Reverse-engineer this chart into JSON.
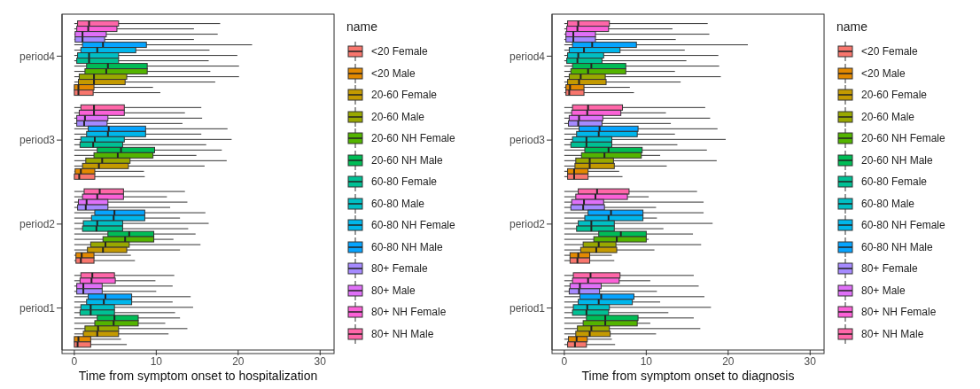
{
  "chart_data": [
    {
      "type": "box",
      "orientation": "horizontal",
      "xlabel": "Time from symptom onset to hospitalization",
      "legend_title": "name",
      "legend": "right",
      "grid": true,
      "xlim": [
        -1.5,
        31.7
      ],
      "xticks": [
        0,
        10,
        20,
        30
      ],
      "categories": [
        "period4",
        "period3",
        "period2",
        "period1"
      ],
      "series": [
        {
          "name": "<20 Female",
          "color": "#f8766d",
          "boxes": [
            {
              "low": 0,
              "q1": 0,
              "median": 0.5,
              "q3": 2.3,
              "high": 10.5
            },
            {
              "low": 0,
              "q1": 0,
              "median": 0.6,
              "q3": 2.5,
              "high": 8.6
            },
            {
              "low": 0,
              "q1": 0.2,
              "median": 0.8,
              "q3": 2.4,
              "high": 7.4
            },
            {
              "low": 0,
              "q1": 0,
              "median": 0.4,
              "q3": 2,
              "high": 6.4
            }
          ]
        },
        {
          "name": "<20 Male",
          "color": "#e38900",
          "boxes": [
            {
              "low": 0,
              "q1": 0,
              "median": 0.5,
              "q3": 2.4,
              "high": 9.6
            },
            {
              "low": 0,
              "q1": 0.1,
              "median": 0.8,
              "q3": 2.5,
              "high": 8.5
            },
            {
              "low": 0,
              "q1": 0.2,
              "median": 0.9,
              "q3": 2.4,
              "high": 6.9
            },
            {
              "low": 0,
              "q1": 0,
              "median": 0.5,
              "q3": 2,
              "high": 5.7
            }
          ]
        },
        {
          "name": "20-60 Female",
          "color": "#c49a00",
          "boxes": [
            {
              "low": 0,
              "q1": 0.5,
              "median": 2.4,
              "q3": 6.2,
              "high": 17.2
            },
            {
              "low": 0,
              "q1": 1,
              "median": 3,
              "q3": 6.6,
              "high": 15.9
            },
            {
              "low": 0,
              "q1": 1.6,
              "median": 3.5,
              "q3": 6.4,
              "high": 12.9
            },
            {
              "low": 0,
              "q1": 1.1,
              "median": 2.8,
              "q3": 5.4,
              "high": 11.5
            }
          ]
        },
        {
          "name": "20-60 Male",
          "color": "#99a800",
          "boxes": [
            {
              "low": 0,
              "q1": 0.6,
              "median": 2.4,
              "q3": 6.4,
              "high": 20.1
            },
            {
              "low": 0,
              "q1": 1.4,
              "median": 3.4,
              "q3": 6.8,
              "high": 18.6
            },
            {
              "low": 0,
              "q1": 2,
              "median": 3.8,
              "q3": 6.7,
              "high": 15.4
            },
            {
              "low": 0,
              "q1": 1.3,
              "median": 2.9,
              "q3": 5.4,
              "high": 13.8
            }
          ]
        },
        {
          "name": "20-60 NH Female",
          "color": "#53b400",
          "boxes": [
            {
              "low": 0,
              "q1": 1.3,
              "median": 3.9,
              "q3": 8.9,
              "high": 16.6
            },
            {
              "low": 0,
              "q1": 2.4,
              "median": 5.3,
              "q3": 9.6,
              "high": 14.9
            },
            {
              "low": 0,
              "q1": 3.5,
              "median": 6.2,
              "q3": 9.7,
              "high": 12.1
            },
            {
              "low": 0,
              "q1": 2.5,
              "median": 4.8,
              "q3": 7.8,
              "high": 11.1
            }
          ]
        },
        {
          "name": "20-60 NH Male",
          "color": "#00bc56",
          "boxes": [
            {
              "low": 0,
              "q1": 1.5,
              "median": 4.1,
              "q3": 8.9,
              "high": 20.1
            },
            {
              "low": 0,
              "q1": 2.8,
              "median": 5.7,
              "q3": 9.8,
              "high": 18
            },
            {
              "low": 0,
              "q1": 4.1,
              "median": 6.7,
              "q3": 9.7,
              "high": 14.8
            },
            {
              "low": 0,
              "q1": 2.8,
              "median": 4.9,
              "q3": 7.8,
              "high": 12.9
            }
          ]
        },
        {
          "name": "60-80 Female",
          "color": "#00c094",
          "boxes": [
            {
              "low": 0,
              "q1": 0.3,
              "median": 1.8,
              "q3": 5.4,
              "high": 16.4
            },
            {
              "low": 0,
              "q1": 0.7,
              "median": 2.3,
              "q3": 5.9,
              "high": 16.1
            },
            {
              "low": 0,
              "q1": 1,
              "median": 2.7,
              "q3": 5.9,
              "high": 13.9
            },
            {
              "low": 0,
              "q1": 0.7,
              "median": 2,
              "q3": 4.9,
              "high": 12.3
            }
          ]
        },
        {
          "name": "60-80 Male",
          "color": "#00bfc4",
          "boxes": [
            {
              "low": 0,
              "q1": 0.4,
              "median": 1.8,
              "q3": 5.4,
              "high": 19.9
            },
            {
              "low": 0,
              "q1": 0.8,
              "median": 2.5,
              "q3": 6.1,
              "high": 19.2
            },
            {
              "low": 0,
              "q1": 1.1,
              "median": 2.8,
              "q3": 5.9,
              "high": 16.4
            },
            {
              "low": 0,
              "q1": 0.8,
              "median": 2,
              "q3": 4.9,
              "high": 14.5
            }
          ]
        },
        {
          "name": "60-80 NH Female",
          "color": "#00b6eb",
          "boxes": [
            {
              "low": 0,
              "q1": 0.8,
              "median": 2.8,
              "q3": 7.5,
              "high": 16.5
            },
            {
              "low": 0,
              "q1": 1.5,
              "median": 4.1,
              "q3": 8.7,
              "high": 15.5
            },
            {
              "low": 0,
              "q1": 2.1,
              "median": 4.8,
              "q3": 8.6,
              "high": 12.9
            },
            {
              "low": 0,
              "q1": 1.5,
              "median": 3.6,
              "q3": 7,
              "high": 12
            }
          ]
        },
        {
          "name": "60-80 NH Male",
          "color": "#06a4ff",
          "boxes": [
            {
              "low": 0,
              "q1": 1,
              "median": 3.5,
              "q3": 8.8,
              "high": 21.7
            },
            {
              "low": 0,
              "q1": 1.7,
              "median": 4.2,
              "q3": 8.7,
              "high": 18.7
            },
            {
              "low": 0,
              "q1": 2.5,
              "median": 4.9,
              "q3": 8.6,
              "high": 16
            },
            {
              "low": 0,
              "q1": 1.7,
              "median": 3.8,
              "q3": 7,
              "high": 14.2
            }
          ]
        },
        {
          "name": "80+ Female",
          "color": "#a58aff",
          "boxes": [
            {
              "low": 0,
              "q1": 0.1,
              "median": 1,
              "q3": 3.7,
              "high": 14.6
            },
            {
              "low": 0,
              "q1": 0.3,
              "median": 1.2,
              "q3": 4,
              "high": 13.2
            },
            {
              "low": 0,
              "q1": 0.4,
              "median": 1.4,
              "q3": 4.1,
              "high": 11.7
            },
            {
              "low": 0,
              "q1": 0.3,
              "median": 1.1,
              "q3": 3.4,
              "high": 10
            }
          ]
        },
        {
          "name": "80+ Male",
          "color": "#df70f8",
          "boxes": [
            {
              "low": 0,
              "q1": 0.1,
              "median": 1,
              "q3": 3.9,
              "high": 17.5
            },
            {
              "low": 0,
              "q1": 0.3,
              "median": 1.3,
              "q3": 4.1,
              "high": 15.6
            },
            {
              "low": 0,
              "q1": 0.5,
              "median": 1.5,
              "q3": 4.1,
              "high": 13.8
            },
            {
              "low": 0,
              "q1": 0.3,
              "median": 1.1,
              "q3": 3.4,
              "high": 12
            }
          ]
        },
        {
          "name": "80+ NH Female",
          "color": "#fb61d7",
          "boxes": [
            {
              "low": 0,
              "q1": 0.3,
              "median": 1.7,
              "q3": 5.2,
              "high": 14.6
            },
            {
              "low": 0,
              "q1": 0.6,
              "median": 2.4,
              "q3": 6.1,
              "high": 13.5
            },
            {
              "low": 0,
              "q1": 1,
              "median": 2.8,
              "q3": 6,
              "high": 11.3
            },
            {
              "low": 0,
              "q1": 0.7,
              "median": 2.1,
              "q3": 5,
              "high": 9.9
            }
          ]
        },
        {
          "name": "80+ NH Male",
          "color": "#ff66a8",
          "boxes": [
            {
              "low": 0,
              "q1": 0.4,
              "median": 1.8,
              "q3": 5.4,
              "high": 17.8
            },
            {
              "low": 0,
              "q1": 0.8,
              "median": 2.4,
              "q3": 6.1,
              "high": 15.5
            },
            {
              "low": 0,
              "q1": 1.2,
              "median": 3.1,
              "q3": 6,
              "high": 13.5
            },
            {
              "low": 0,
              "q1": 0.8,
              "median": 2.2,
              "q3": 4.9,
              "high": 12.2
            }
          ]
        }
      ]
    },
    {
      "type": "box",
      "orientation": "horizontal",
      "xlabel": "Time from symptom onset to diagnosis",
      "legend_title": "name",
      "legend": "right",
      "grid": true,
      "xlim": [
        -1.5,
        31.7
      ],
      "xticks": [
        0,
        10,
        20,
        30
      ],
      "categories": [
        "period4",
        "period3",
        "period2",
        "period1"
      ],
      "series": [
        {
          "name": "<20 Female",
          "color": "#f8766d",
          "boxes": [
            {
              "low": 0,
              "q1": 0.2,
              "median": 0.6,
              "q3": 2.4,
              "high": 8.5
            },
            {
              "low": 0,
              "q1": 0.4,
              "median": 1.2,
              "q3": 2.9,
              "high": 7.1
            },
            {
              "low": 0,
              "q1": 0.7,
              "median": 1.6,
              "q3": 3.1,
              "high": 6.1
            },
            {
              "low": 0,
              "q1": 0.4,
              "median": 1.3,
              "q3": 2.7,
              "high": 6.2
            }
          ]
        },
        {
          "name": "<20 Male",
          "color": "#e38900",
          "boxes": [
            {
              "low": 0,
              "q1": 0.2,
              "median": 0.7,
              "q3": 2.4,
              "high": 8
            },
            {
              "low": 0,
              "q1": 0.4,
              "median": 1.2,
              "q3": 2.9,
              "high": 6.7
            },
            {
              "low": 0,
              "q1": 0.7,
              "median": 1.7,
              "q3": 3.1,
              "high": 5.8
            },
            {
              "low": 0,
              "q1": 0.5,
              "median": 1.5,
              "q3": 2.8,
              "high": 5.8
            }
          ]
        },
        {
          "name": "20-60 Female",
          "color": "#c49a00",
          "boxes": [
            {
              "low": 0,
              "q1": 0.4,
              "median": 1.8,
              "q3": 5.1,
              "high": 14.2
            },
            {
              "low": 0,
              "q1": 1.3,
              "median": 3.1,
              "q3": 6.1,
              "high": 12.5
            },
            {
              "low": 0,
              "q1": 2,
              "median": 3.9,
              "q3": 6.4,
              "high": 11
            },
            {
              "low": 0,
              "q1": 1.4,
              "median": 3.1,
              "q3": 5.6,
              "high": 11.2
            }
          ]
        },
        {
          "name": "20-60 Male",
          "color": "#99a800",
          "boxes": [
            {
              "low": 0,
              "q1": 0.6,
              "median": 2,
              "q3": 5,
              "high": 19.1
            },
            {
              "low": 0,
              "q1": 1.4,
              "median": 3.1,
              "q3": 6,
              "high": 18.6
            },
            {
              "low": 0,
              "q1": 2.3,
              "median": 4.2,
              "q3": 6.3,
              "high": 16.7
            },
            {
              "low": 0,
              "q1": 1.6,
              "median": 3.3,
              "q3": 5.5,
              "high": 16.6
            }
          ]
        },
        {
          "name": "20-60 NH Female",
          "color": "#53b400",
          "boxes": [
            {
              "low": 0,
              "q1": 0.8,
              "median": 2.9,
              "q3": 7.5,
              "high": 13.5
            },
            {
              "low": 0,
              "q1": 2.1,
              "median": 4.9,
              "q3": 9.4,
              "high": 11.7
            },
            {
              "low": 0,
              "q1": 3.6,
              "median": 6.4,
              "q3": 10,
              "high": 10.3
            },
            {
              "low": 0,
              "q1": 2.3,
              "median": 5,
              "q3": 8.9,
              "high": 10.5
            }
          ]
        },
        {
          "name": "20-60 NH Male",
          "color": "#00bc56",
          "boxes": [
            {
              "low": 0,
              "q1": 1,
              "median": 3.3,
              "q3": 7.5,
              "high": 18.9
            },
            {
              "low": 0,
              "q1": 2.5,
              "median": 5.4,
              "q3": 9.5,
              "high": 17.4
            },
            {
              "low": 0,
              "q1": 4.2,
              "median": 6.9,
              "q3": 10,
              "high": 15.7
            },
            {
              "low": 0,
              "q1": 2.7,
              "median": 5,
              "q3": 9,
              "high": 15.8
            }
          ]
        },
        {
          "name": "60-80 Female",
          "color": "#00c094",
          "boxes": [
            {
              "low": 0,
              "q1": 0.3,
              "median": 1.6,
              "q3": 4.6,
              "high": 14.9
            },
            {
              "low": 0,
              "q1": 0.8,
              "median": 2.7,
              "q3": 5.8,
              "high": 13.8
            },
            {
              "low": 0,
              "q1": 1.5,
              "median": 3.3,
              "q3": 6.1,
              "high": 12.1
            },
            {
              "low": 0,
              "q1": 1,
              "median": 2.7,
              "q3": 5.4,
              "high": 12.7
            }
          ]
        },
        {
          "name": "60-80 Male",
          "color": "#00bfc4",
          "boxes": [
            {
              "low": 0,
              "q1": 0.4,
              "median": 1.7,
              "q3": 4.8,
              "high": 18.8
            },
            {
              "low": 0,
              "q1": 1,
              "median": 2.7,
              "q3": 5.8,
              "high": 19.7
            },
            {
              "low": 0,
              "q1": 1.7,
              "median": 3.3,
              "q3": 6.1,
              "high": 18.1
            },
            {
              "low": 0,
              "q1": 1.1,
              "median": 2.8,
              "q3": 5.5,
              "high": 17.9
            }
          ]
        },
        {
          "name": "60-80 NH Female",
          "color": "#00b6eb",
          "boxes": [
            {
              "low": 0,
              "q1": 0.6,
              "median": 2.4,
              "q3": 6.8,
              "high": 14.7
            },
            {
              "low": 0,
              "q1": 1.5,
              "median": 4.2,
              "q3": 8.9,
              "high": 13.5
            },
            {
              "low": 0,
              "q1": 2.5,
              "median": 5.4,
              "q3": 9.6,
              "high": 11.3
            },
            {
              "low": 0,
              "q1": 1.7,
              "median": 4.2,
              "q3": 8.3,
              "high": 11.7
            }
          ]
        },
        {
          "name": "60-80 NH Male",
          "color": "#06a4ff",
          "boxes": [
            {
              "low": 0,
              "q1": 1,
              "median": 3.4,
              "q3": 8.8,
              "high": 22.4
            },
            {
              "low": 0,
              "q1": 1.8,
              "median": 4.3,
              "q3": 9,
              "high": 18.7
            },
            {
              "low": 0,
              "q1": 2.9,
              "median": 5.7,
              "q3": 9.6,
              "high": 17
            },
            {
              "low": 0,
              "q1": 1.9,
              "median": 4.5,
              "q3": 8.5,
              "high": 17.1
            }
          ]
        },
        {
          "name": "80+ Female",
          "color": "#a58aff",
          "boxes": [
            {
              "low": 0,
              "q1": 0.2,
              "median": 1.1,
              "q3": 3.8,
              "high": 13.6
            },
            {
              "low": 0,
              "q1": 0.5,
              "median": 1.7,
              "q3": 4.6,
              "high": 13
            },
            {
              "low": 0,
              "q1": 0.8,
              "median": 2.3,
              "q3": 4.9,
              "high": 11.2
            },
            {
              "low": 0,
              "q1": 0.6,
              "median": 1.8,
              "q3": 4.3,
              "high": 11.3
            }
          ]
        },
        {
          "name": "80+ Male",
          "color": "#df70f8",
          "boxes": [
            {
              "low": 0,
              "q1": 0.2,
              "median": 1.1,
              "q3": 3.8,
              "high": 17.7
            },
            {
              "low": 0,
              "q1": 0.6,
              "median": 1.8,
              "q3": 4.7,
              "high": 17.8
            },
            {
              "low": 0,
              "q1": 0.9,
              "median": 2.4,
              "q3": 4.8,
              "high": 17
            },
            {
              "low": 0,
              "q1": 0.7,
              "median": 1.9,
              "q3": 4.5,
              "high": 16.4
            }
          ]
        },
        {
          "name": "80+ NH Female",
          "color": "#fb61d7",
          "boxes": [
            {
              "low": 0,
              "q1": 0.3,
              "median": 1.6,
              "q3": 5.4,
              "high": 13.2
            },
            {
              "low": 0,
              "q1": 0.9,
              "median": 2.8,
              "q3": 6.9,
              "high": 12.4
            },
            {
              "low": 0,
              "q1": 1.4,
              "median": 3.8,
              "q3": 7.7,
              "high": 10.3
            },
            {
              "low": 0,
              "q1": 1,
              "median": 2.9,
              "q3": 6.7,
              "high": 10.5
            }
          ]
        },
        {
          "name": "80+ NH Male",
          "color": "#ff66a8",
          "boxes": [
            {
              "low": 0,
              "q1": 0.4,
              "median": 1.7,
              "q3": 5.5,
              "high": 17.5
            },
            {
              "low": 0,
              "q1": 1,
              "median": 2.9,
              "q3": 7.1,
              "high": 17.2
            },
            {
              "low": 0,
              "q1": 1.7,
              "median": 4,
              "q3": 7.9,
              "high": 16.2
            },
            {
              "low": 0,
              "q1": 1.1,
              "median": 3.2,
              "q3": 6.8,
              "high": 15.8
            }
          ]
        }
      ]
    }
  ]
}
